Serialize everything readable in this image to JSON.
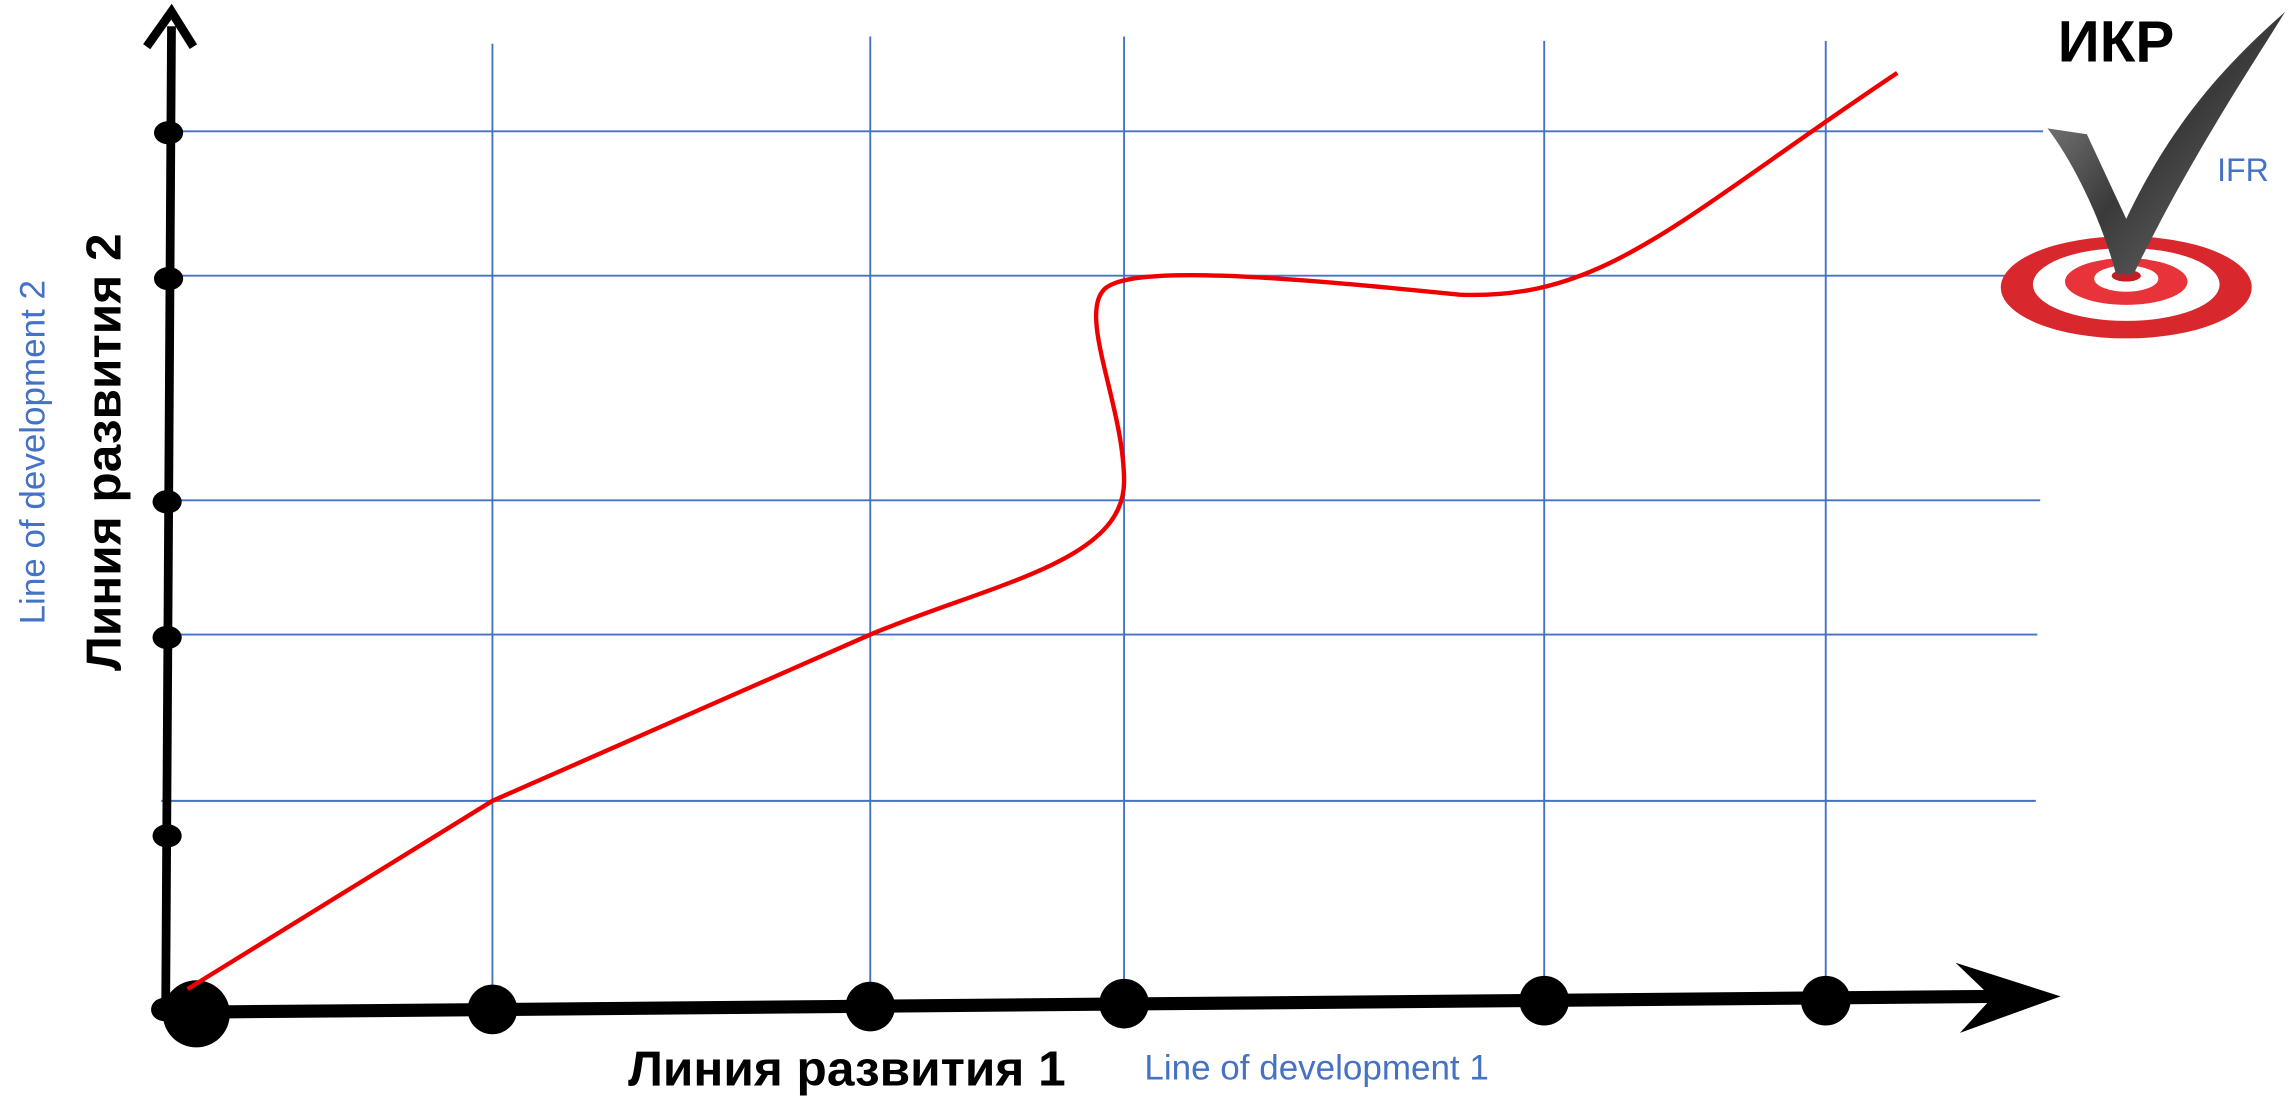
{
  "goal": {
    "label": "ИКР",
    "label_en": "IFR"
  },
  "axes": {
    "x": {
      "label": "Линия развития 1",
      "label_en": "Line of development 1"
    },
    "y": {
      "label": "Линия развития 2",
      "label_en": "Line of development 2"
    }
  }
}
